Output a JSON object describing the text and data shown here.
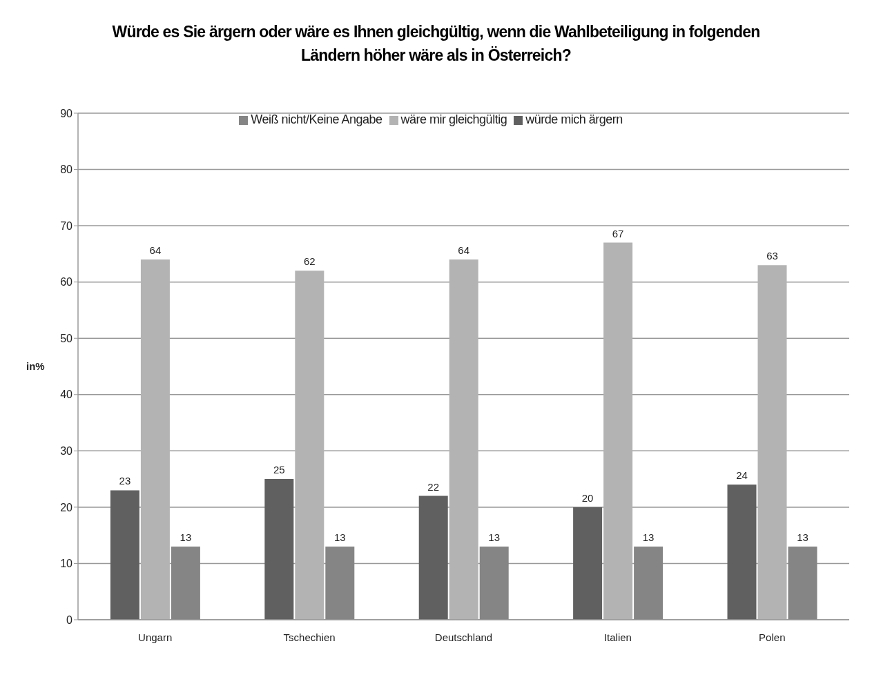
{
  "chart_data": {
    "type": "bar",
    "title": "Würde es Sie ärgern oder wäre es Ihnen gleichgültig,  wenn die Wahlbeteiligung  in folgenden Ländern höher wäre als in Österreich?",
    "ylabel": "in%",
    "categories": [
      "Ungarn",
      "Tschechien",
      "Deutschland",
      "Italien",
      "Polen"
    ],
    "series": [
      {
        "name": "würde mich ärgern",
        "color": "#606060",
        "values": [
          23,
          25,
          22,
          20,
          24
        ]
      },
      {
        "name": "wäre mir gleichgültig",
        "color": "#b3b3b3",
        "values": [
          64,
          62,
          64,
          67,
          63
        ]
      },
      {
        "name": "Weiß nicht/Keine Angabe",
        "color": "#858585",
        "values": [
          13,
          13,
          13,
          13,
          13
        ]
      }
    ],
    "ylim": [
      0,
      90
    ],
    "yticks": [
      0,
      10,
      20,
      30,
      40,
      50,
      60,
      70,
      80,
      90
    ],
    "grid": "y",
    "legend": "top",
    "data_labels": true
  }
}
